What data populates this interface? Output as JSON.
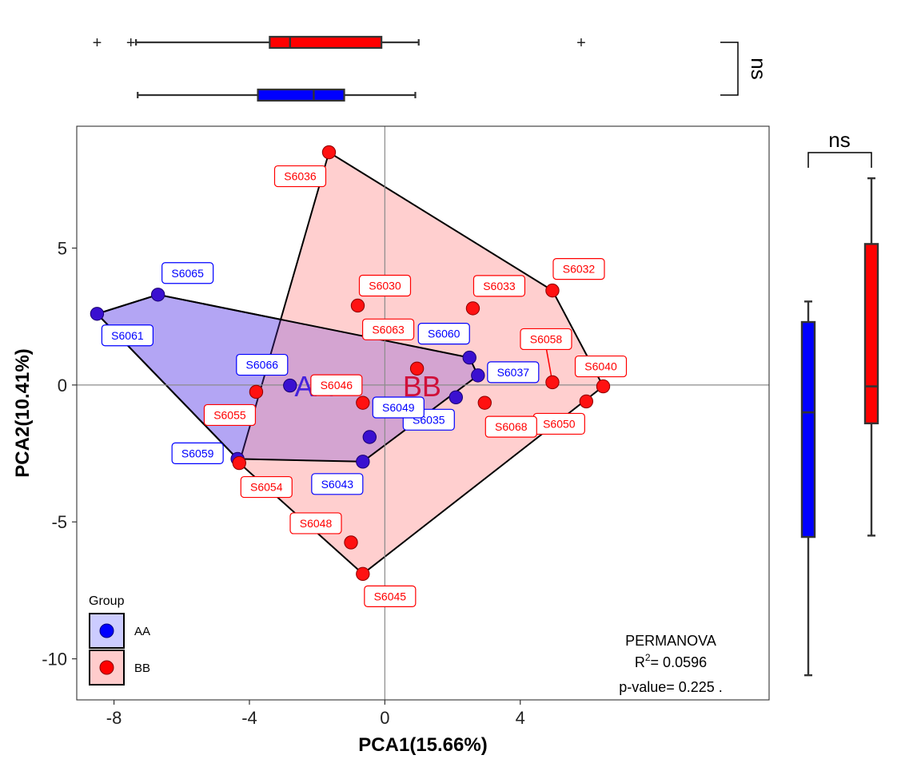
{
  "chart_data": {
    "type": "scatter",
    "title": "",
    "xlabel": "PCA1(15.66%)",
    "ylabel": "PCA2(10.41%)",
    "xlim": [
      -9.1,
      11.35
    ],
    "ylim": [
      -11.5,
      9.45
    ],
    "xticks": [
      -8,
      -4,
      0,
      4
    ],
    "yticks": [
      5,
      0,
      -5,
      -10
    ],
    "tick_labels_x": [
      "-8",
      "-4",
      "0",
      "4"
    ],
    "tick_labels_y": [
      "5",
      "0",
      "-5",
      "-10"
    ],
    "reference_lines": {
      "x": 0,
      "y": 0
    },
    "grid": false,
    "groups": [
      {
        "name": "AA",
        "color": "#0000ff",
        "fill": "#ccccff",
        "hull": [
          "S6061",
          "S6065",
          "S6060",
          "S6037",
          "S6043",
          "S6059"
        ],
        "centroid_label": {
          "text": "AA",
          "x": -2.1,
          "y": 0
        },
        "points": [
          {
            "id": "S6065",
            "x": -6.7,
            "y": 3.3
          },
          {
            "id": "S6061",
            "x": -8.5,
            "y": 2.6
          },
          {
            "id": "S6066",
            "x": -2.8,
            "y": -0.02
          },
          {
            "id": "S6060",
            "x": 2.5,
            "y": 1.0
          },
          {
            "id": "S6037",
            "x": 2.75,
            "y": 0.35
          },
          {
            "id": "S6035",
            "x": 2.1,
            "y": -0.45
          },
          {
            "id": "S6049",
            "x": -0.45,
            "y": -1.9
          },
          {
            "id": "S6043",
            "x": -0.65,
            "y": -2.8
          },
          {
            "id": "S6059",
            "x": -4.35,
            "y": -2.7
          }
        ]
      },
      {
        "name": "BB",
        "color": "#ff0000",
        "fill": "#ffcccc",
        "hull": [
          "S6036",
          "S6032",
          "S6040",
          "S6045",
          "S6054"
        ],
        "centroid_label": {
          "text": "BB",
          "x": 1.1,
          "y": 0
        },
        "points": [
          {
            "id": "S6036",
            "x": -1.65,
            "y": 8.5
          },
          {
            "id": "S6032",
            "x": 4.95,
            "y": 3.45
          },
          {
            "id": "S6030",
            "x": -0.8,
            "y": 2.9
          },
          {
            "id": "S6033",
            "x": 2.6,
            "y": 2.8
          },
          {
            "id": "S6063",
            "x": 0.95,
            "y": 0.6
          },
          {
            "id": "S6058",
            "x": 4.95,
            "y": 0.1
          },
          {
            "id": "S6040",
            "x": 6.45,
            "y": -0.05
          },
          {
            "id": "S6050",
            "x": 5.95,
            "y": -0.6
          },
          {
            "id": "S6068",
            "x": 2.95,
            "y": -0.65
          },
          {
            "id": "S6046",
            "x": -0.65,
            "y": -0.65
          },
          {
            "id": "S6055",
            "x": -3.8,
            "y": -0.25
          },
          {
            "id": "S6054",
            "x": -4.3,
            "y": -2.85
          },
          {
            "id": "S6048",
            "x": -1.0,
            "y": -5.75
          },
          {
            "id": "S6045",
            "x": -0.65,
            "y": -6.9
          }
        ]
      }
    ],
    "legend": {
      "title": "Group",
      "position": "bottom-left",
      "entries": [
        "AA",
        "BB"
      ]
    },
    "annotation": {
      "line1": "PERMANOVA",
      "r2_prefix": "R",
      "r2_sup": "2",
      "r2_value": "= 0.0596",
      "line3": "p-value= 0.225 ."
    },
    "marginal_top": {
      "test_label": "ns",
      "boxes": [
        {
          "group": "BB",
          "whisker_low": -7.35,
          "q1": -3.4,
          "median": -2.8,
          "q3": -0.1,
          "whisker_high": 1.0,
          "outliers": [
            -8.5,
            -7.5,
            5.8
          ]
        },
        {
          "group": "AA",
          "whisker_low": -7.3,
          "q1": -3.75,
          "median": -2.1,
          "q3": -1.2,
          "whisker_high": 0.9,
          "outliers": []
        }
      ]
    },
    "marginal_right": {
      "test_label": "ns",
      "boxes": [
        {
          "group": "AA",
          "whisker_low": -10.6,
          "q1": -5.55,
          "median": -1.0,
          "q3": 2.3,
          "whisker_high": 3.05
        },
        {
          "group": "BB",
          "whisker_low": -5.5,
          "q1": -1.4,
          "median": -0.05,
          "q3": 5.15,
          "whisker_high": 7.55
        }
      ]
    }
  }
}
